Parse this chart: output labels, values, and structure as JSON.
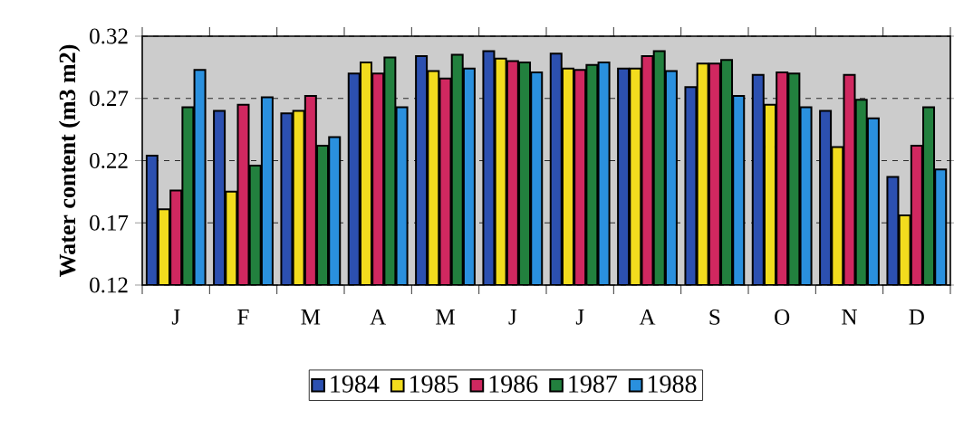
{
  "chart_data": {
    "type": "bar",
    "ylabel": "Water content (m3 m2)",
    "categories": [
      "J",
      "F",
      "M",
      "A",
      "M",
      "J",
      "J",
      "A",
      "S",
      "O",
      "N",
      "D"
    ],
    "series": [
      {
        "name": "1984",
        "color": "#2c50b0",
        "values": [
          0.224,
          0.26,
          0.258,
          0.29,
          0.304,
          0.308,
          0.306,
          0.294,
          0.279,
          0.289,
          0.26,
          0.207
        ]
      },
      {
        "name": "1985",
        "color": "#f2dc1e",
        "values": [
          0.181,
          0.195,
          0.26,
          0.299,
          0.292,
          0.302,
          0.294,
          0.294,
          0.298,
          0.265,
          0.231,
          0.176
        ]
      },
      {
        "name": "1986",
        "color": "#d02860",
        "values": [
          0.196,
          0.265,
          0.272,
          0.29,
          0.286,
          0.3,
          0.293,
          0.304,
          0.298,
          0.291,
          0.289,
          0.232
        ]
      },
      {
        "name": "1987",
        "color": "#22803e",
        "values": [
          0.263,
          0.216,
          0.232,
          0.303,
          0.305,
          0.299,
          0.297,
          0.308,
          0.301,
          0.29,
          0.269,
          0.263
        ]
      },
      {
        "name": "1988",
        "color": "#2a90de",
        "values": [
          0.293,
          0.271,
          0.239,
          0.263,
          0.294,
          0.291,
          0.299,
          0.292,
          0.272,
          0.263,
          0.254,
          0.213
        ]
      }
    ],
    "ylim": [
      0.12,
      0.32
    ],
    "yticks": [
      0.12,
      0.17,
      0.22,
      0.27,
      0.32
    ],
    "grid": "y",
    "legend": "bottom"
  }
}
